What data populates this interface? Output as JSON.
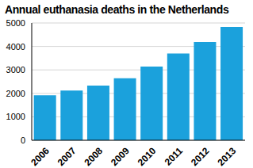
{
  "chart_data": {
    "type": "bar",
    "title": "Annual euthanasia deaths in the Netherlands",
    "categories": [
      "2006",
      "2007",
      "2008",
      "2009",
      "2010",
      "2011",
      "2012",
      "2013"
    ],
    "values": [
      1920,
      2120,
      2330,
      2640,
      3140,
      3700,
      4190,
      4830
    ],
    "color": "#1ba1dc",
    "ylim": [
      0,
      5000
    ],
    "yticks": [
      0,
      1000,
      2000,
      3000,
      4000,
      5000
    ],
    "grid": true
  }
}
